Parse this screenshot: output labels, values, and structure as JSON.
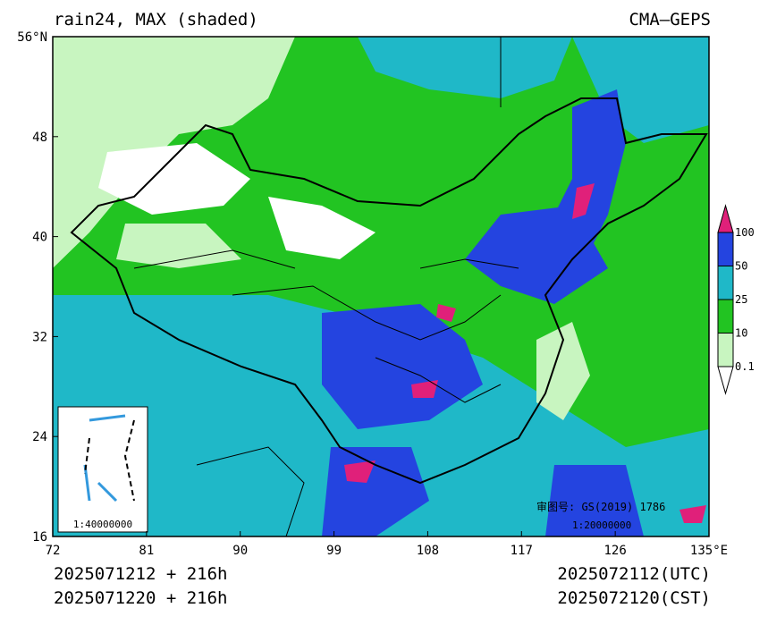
{
  "header": {
    "title": "rain24, MAX (shaded)",
    "source": "CMA—GEPS"
  },
  "map": {
    "xlim": [
      72,
      135
    ],
    "ylim": [
      16,
      56
    ],
    "xticks": [
      72,
      81,
      90,
      99,
      108,
      117,
      126,
      {
        "value": 135,
        "label": "135°E"
      }
    ],
    "yticks": [
      16,
      24,
      32,
      40,
      48,
      {
        "value": 56,
        "label": "56°N"
      }
    ],
    "inset_scale": "1:40000000",
    "approval": "审图号: GS(2019) 1786",
    "scale": "1:20000000"
  },
  "colorbar": {
    "levels": [
      0.1,
      10,
      25,
      50,
      100
    ],
    "colors": [
      "#ffffff",
      "#c8f5c0",
      "#22c422",
      "#1fb8c8",
      "#2444e0",
      "#e0207a"
    ]
  },
  "footer": {
    "init_utc": "2025071212 + 216h",
    "init_cst": "2025071220 + 216h",
    "valid_utc": "2025072112(UTC)",
    "valid_cst": "2025072120(CST)"
  }
}
